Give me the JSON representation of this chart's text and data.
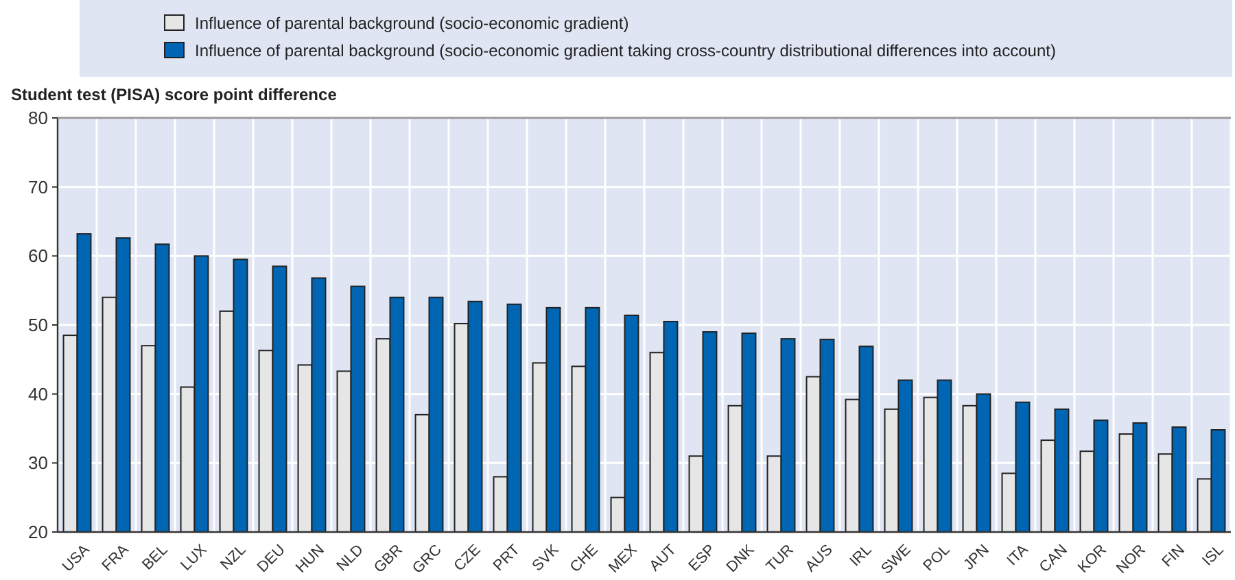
{
  "chart_data": {
    "type": "bar",
    "ylabel": "Student test (PISA) score point difference",
    "categories": [
      "USA",
      "FRA",
      "BEL",
      "LUX",
      "NZL",
      "DEU",
      "HUN",
      "NLD",
      "GBR",
      "GRC",
      "CZE",
      "PRT",
      "SVK",
      "CHE",
      "MEX",
      "AUT",
      "ESP",
      "DNK",
      "TUR",
      "AUS",
      "IRL",
      "SWE",
      "POL",
      "JPN",
      "ITA",
      "CAN",
      "KOR",
      "NOR",
      "FIN",
      "ISL"
    ],
    "series": [
      {
        "name": "Influence of parental background (socio-economic gradient)",
        "color": "#e6e6e6",
        "values": [
          48.5,
          54,
          47,
          41,
          52,
          46.3,
          44.2,
          43.3,
          48,
          37,
          50.2,
          28,
          44.5,
          44,
          25,
          46,
          31,
          38.3,
          31,
          42.5,
          39.2,
          37.8,
          39.5,
          38.3,
          28.5,
          33.3,
          31.7,
          34.2,
          31.3,
          27.7
        ]
      },
      {
        "name": "Influence of parental background (socio-economic gradient taking cross-country distributional differences into account)",
        "color": "#0066b3",
        "values": [
          63.2,
          62.6,
          61.7,
          60,
          59.5,
          58.5,
          56.8,
          55.6,
          54,
          54,
          53.4,
          53,
          52.5,
          52.5,
          51.4,
          50.5,
          49,
          48.8,
          48,
          47.9,
          46.9,
          42,
          42,
          40,
          38.8,
          37.8,
          36.2,
          35.8,
          35.2,
          34.8
        ]
      }
    ],
    "ylim": [
      20,
      80
    ],
    "yticks": [
      20,
      30,
      40,
      50,
      60,
      70,
      80
    ],
    "grid": true,
    "legend": "top"
  }
}
